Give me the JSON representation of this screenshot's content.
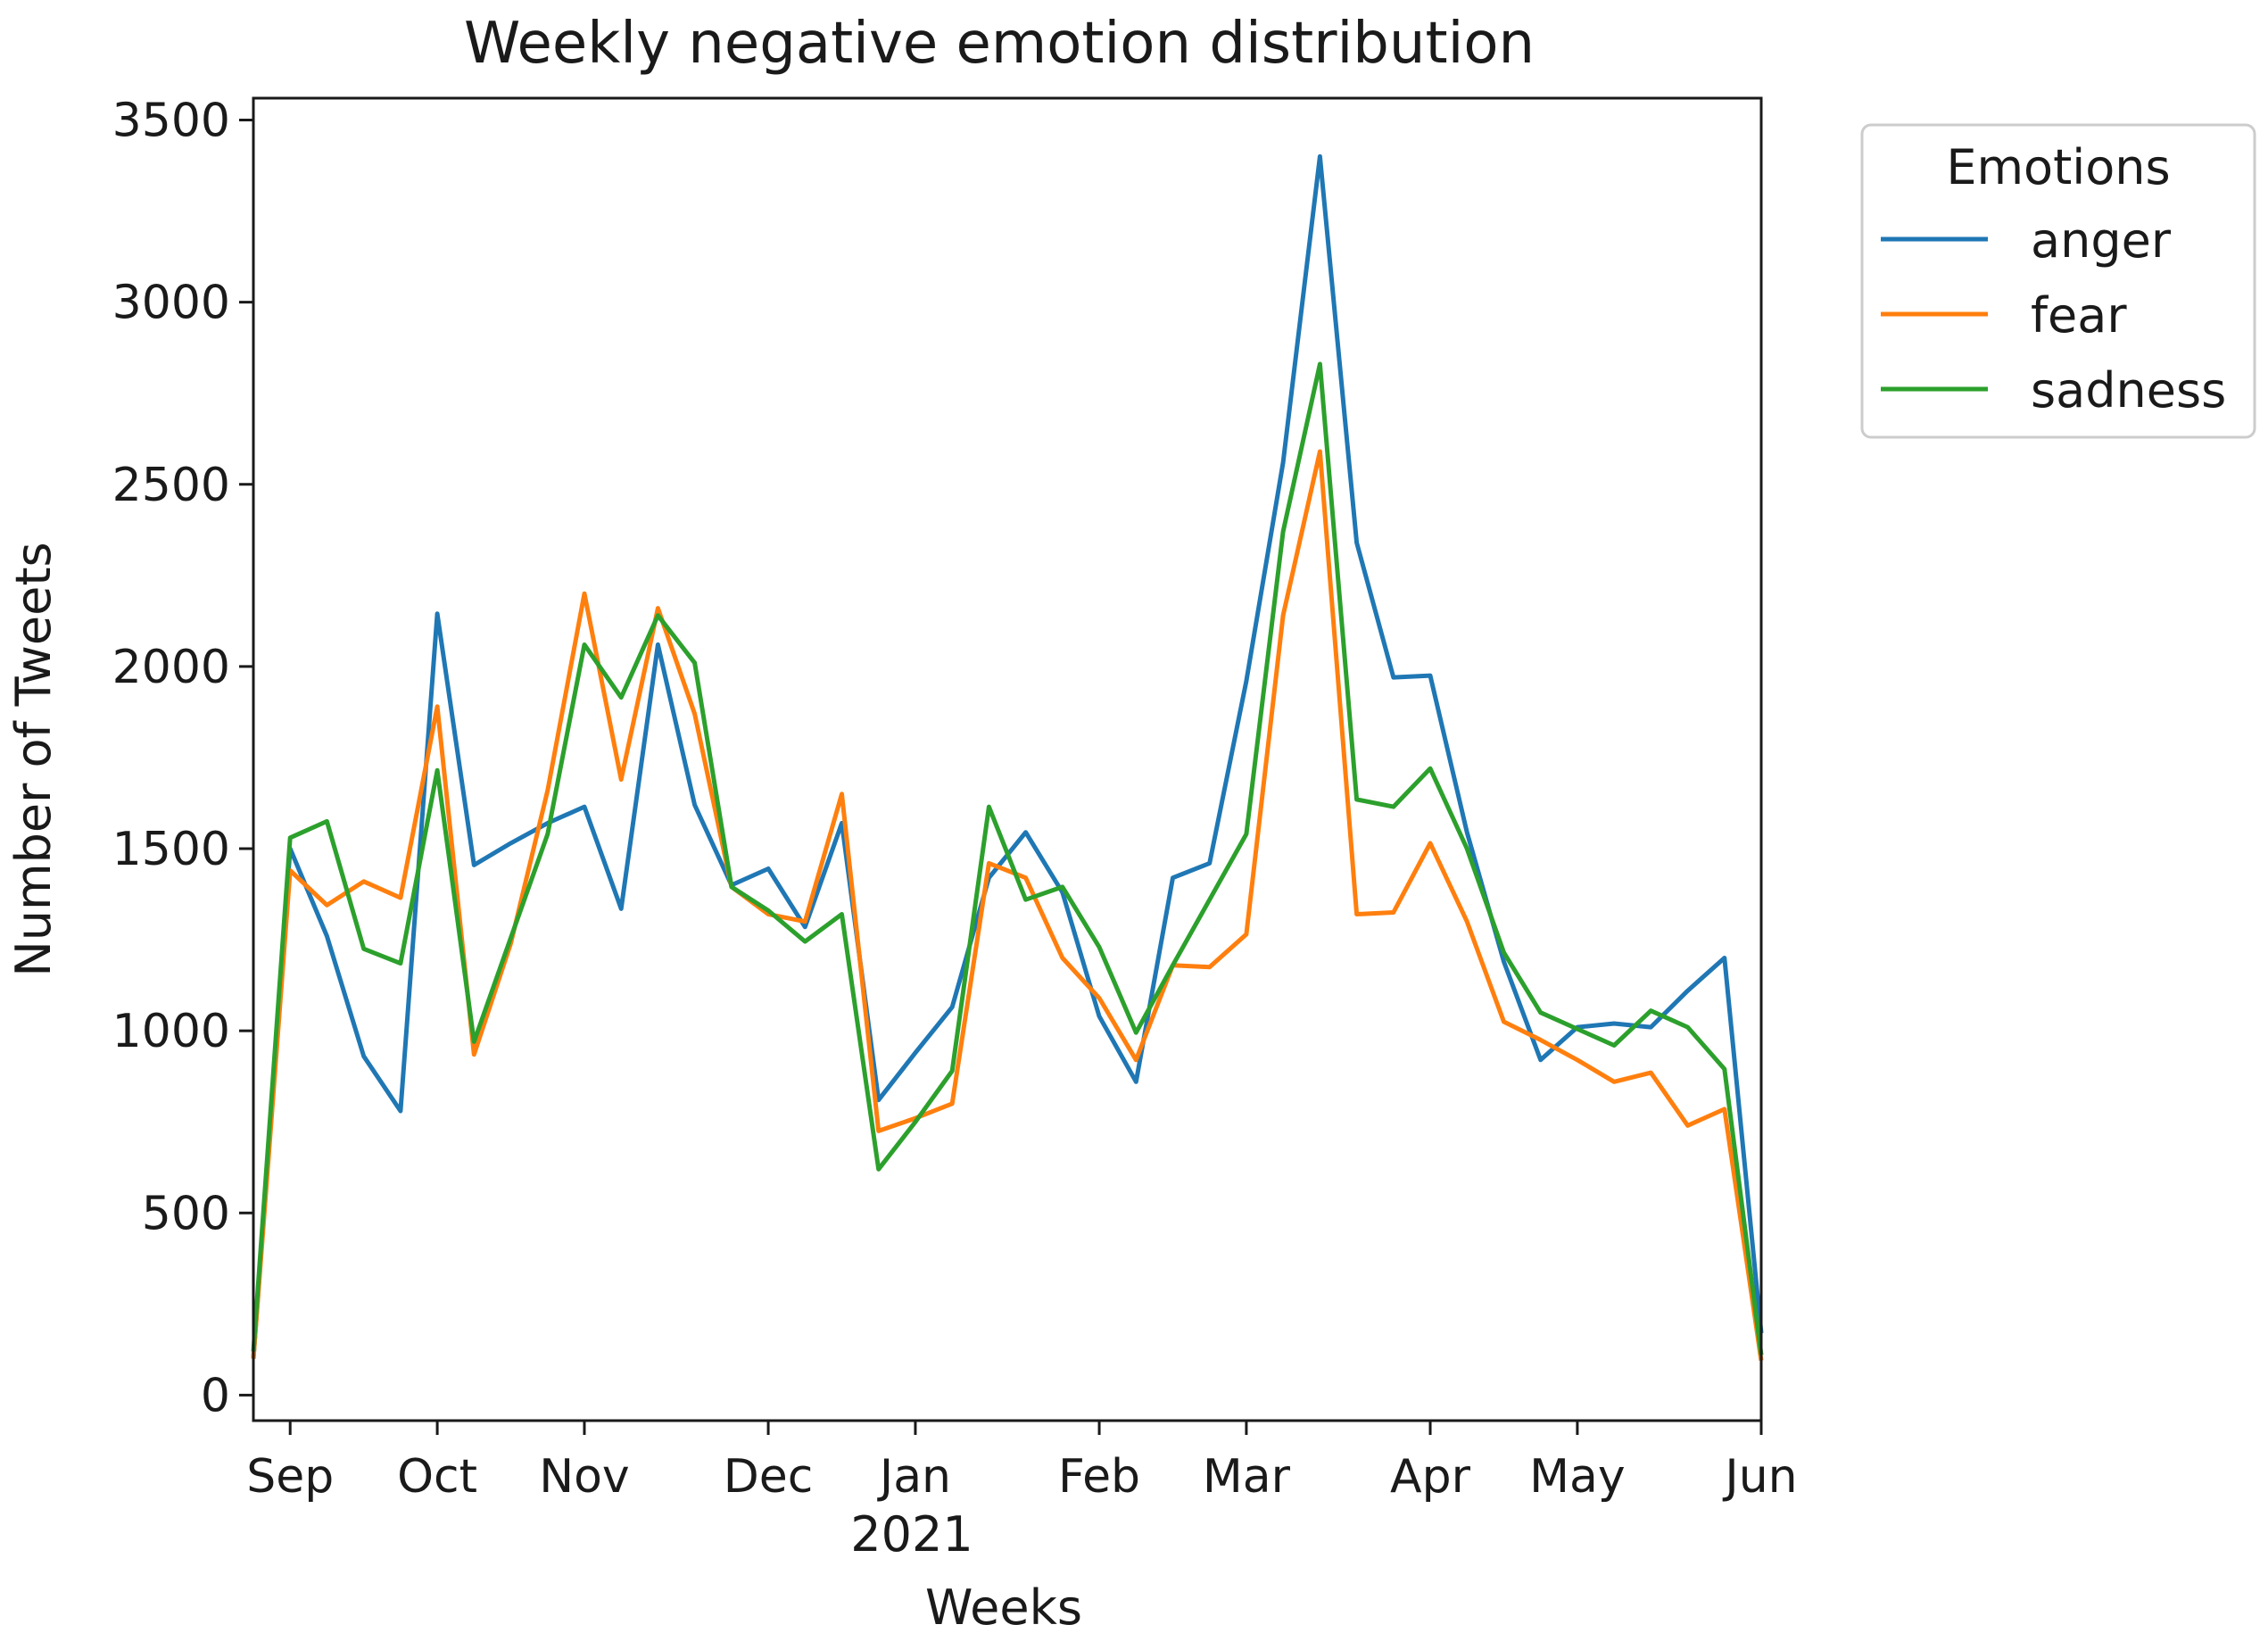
{
  "chart_data": {
    "type": "line",
    "title": "Weekly negative emotion distribution",
    "xlabel": "Weeks",
    "ylabel": "Number of Tweets",
    "ylim": [
      -70,
      3560
    ],
    "yticks": [
      0,
      500,
      1000,
      1500,
      2000,
      2500,
      3000,
      3500
    ],
    "x_start_week": -1,
    "x_end_week": 40,
    "xticks": [
      {
        "week": 0,
        "label": "Sep"
      },
      {
        "week": 4,
        "label": "Oct"
      },
      {
        "week": 8,
        "label": "Nov"
      },
      {
        "week": 13,
        "label": "Dec"
      },
      {
        "week": 17,
        "label": "Jan"
      },
      {
        "week": 22,
        "label": "Feb"
      },
      {
        "week": 26,
        "label": "Mar"
      },
      {
        "week": 31,
        "label": "Apr"
      },
      {
        "week": 35,
        "label": "May"
      },
      {
        "week": 40,
        "label": "Jun"
      }
    ],
    "year_label": "2021",
    "legend": {
      "title": "Emotions",
      "position": "outside-top-right"
    },
    "series": [
      {
        "name": "anger",
        "color": "#1f77b4",
        "values": [
          100,
          1500,
          1260,
          930,
          780,
          2145,
          1455,
          1515,
          1570,
          1615,
          1335,
          2060,
          1620,
          1400,
          1445,
          1285,
          1570,
          810,
          940,
          1065,
          1420,
          1545,
          1380,
          1040,
          860,
          1420,
          1460,
          1960,
          2560,
          3400,
          2340,
          1970,
          1975,
          1545,
          1190,
          920,
          1010,
          1020,
          1010,
          1110,
          1200,
          170
        ]
      },
      {
        "name": "fear",
        "color": "#ff7f0e",
        "values": [
          100,
          1440,
          1345,
          1410,
          1365,
          1890,
          935,
          1240,
          1660,
          2200,
          1690,
          2160,
          1870,
          1395,
          1320,
          1300,
          1650,
          725,
          760,
          800,
          1460,
          1420,
          1200,
          1090,
          920,
          1180,
          1175,
          1265,
          2140,
          2590,
          1320,
          1325,
          1515,
          1300,
          1025,
          975,
          920,
          860,
          885,
          740,
          785,
          95
        ]
      },
      {
        "name": "sadness",
        "color": "#2ca02c",
        "values": [
          120,
          1530,
          1575,
          1225,
          1185,
          1715,
          970,
          1255,
          1540,
          2060,
          1915,
          2140,
          2010,
          1395,
          1330,
          1245,
          1320,
          620,
          750,
          890,
          1615,
          1360,
          1395,
          1230,
          995,
          1180,
          1360,
          1540,
          2370,
          2830,
          1635,
          1615,
          1720,
          1500,
          1215,
          1050,
          1005,
          960,
          1055,
          1010,
          895,
          110
        ]
      }
    ]
  }
}
